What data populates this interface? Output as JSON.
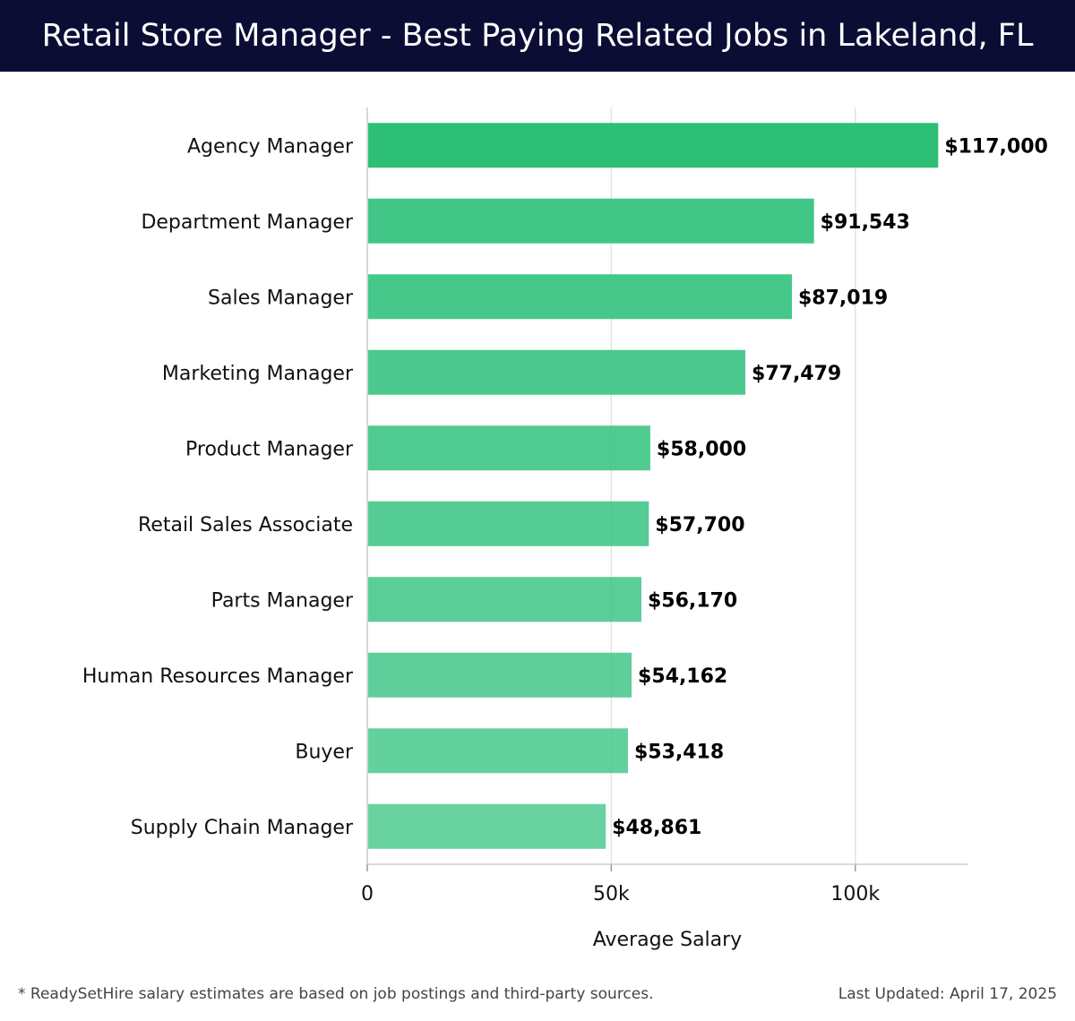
{
  "header": {
    "title": "Retail Store Manager - Best Paying Related Jobs in Lakeland, FL"
  },
  "footer": {
    "note": "* ReadySetHire salary estimates are based on job postings and third-party sources.",
    "updated": "Last Updated: April 17, 2025"
  },
  "chart_data": {
    "type": "bar",
    "orientation": "horizontal",
    "title": "Retail Store Manager - Best Paying Related Jobs in Lakeland, FL",
    "xlabel": "Average Salary",
    "ylabel": "",
    "xlim": [
      0,
      123000
    ],
    "ticks": [
      0,
      50000,
      100000
    ],
    "tick_labels": [
      "0",
      "50k",
      "100k"
    ],
    "grid": true,
    "categories": [
      "Agency Manager",
      "Department Manager",
      "Sales Manager",
      "Marketing Manager",
      "Product Manager",
      "Retail Sales Associate",
      "Parts Manager",
      "Human Resources Manager",
      "Buyer",
      "Supply Chain Manager"
    ],
    "values": [
      117000,
      91543,
      87019,
      77479,
      58000,
      57700,
      56170,
      54162,
      53418,
      48861
    ],
    "value_labels": [
      "$117,000",
      "$91,543",
      "$87,019",
      "$77,479",
      "$58,000",
      "$57,700",
      "$56,170",
      "$54,162",
      "$53,418",
      "$48,861"
    ],
    "colors": {
      "top_bar": "#2ebf76",
      "bars": "#3cc585"
    }
  }
}
